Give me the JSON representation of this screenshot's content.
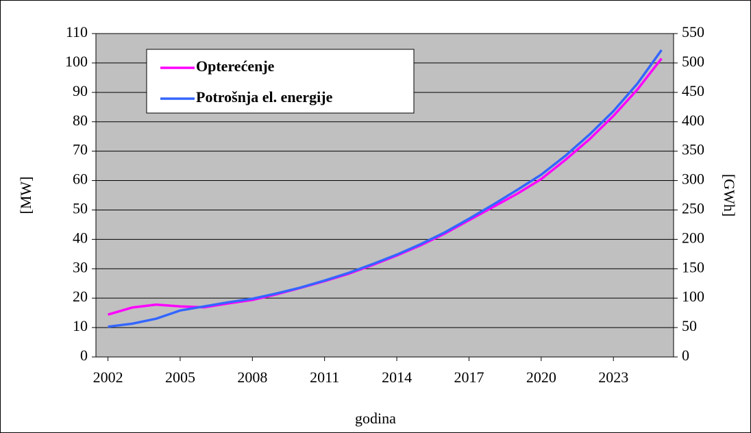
{
  "chart_data": {
    "type": "line",
    "x": [
      2002,
      2003,
      2004,
      2005,
      2006,
      2007,
      2008,
      2009,
      2010,
      2011,
      2012,
      2013,
      2014,
      2015,
      2016,
      2017,
      2018,
      2019,
      2020,
      2021,
      2022,
      2023,
      2024,
      2025
    ],
    "xlim": [
      2001.5,
      2025.5
    ],
    "xticks": [
      2002,
      2005,
      2008,
      2011,
      2014,
      2017,
      2020,
      2023
    ],
    "xlabel": "godina",
    "ylabel": "[MW]",
    "y2label": "[GWh]",
    "ylim": [
      0,
      110
    ],
    "yticks": [
      0,
      10,
      20,
      30,
      40,
      50,
      60,
      70,
      80,
      90,
      100,
      110
    ],
    "y2lim": [
      0,
      550
    ],
    "y2ticks": [
      0,
      50,
      100,
      150,
      200,
      250,
      300,
      350,
      400,
      450,
      500,
      550
    ],
    "grid": true,
    "legend": "upper left",
    "series": [
      {
        "name": "Opterećenje",
        "color": "#ff00ff",
        "values": [
          14.4,
          16.8,
          17.8,
          17.2,
          16.9,
          18.2,
          19.4,
          21.3,
          23.5,
          25.8,
          28.3,
          31.3,
          34.5,
          38,
          42,
          46.5,
          51,
          55.5,
          60.5,
          67,
          74,
          82,
          91,
          101.5
        ]
      },
      {
        "name": "Potrošnja el. energije",
        "color": "#3366ff",
        "axis": "y2",
        "values": [
          51.5,
          56.5,
          65,
          79,
          86,
          93,
          99,
          108,
          118,
          130,
          143,
          158,
          174,
          192,
          212,
          235,
          259,
          284,
          310,
          342,
          378,
          418,
          465,
          522
        ]
      }
    ]
  }
}
